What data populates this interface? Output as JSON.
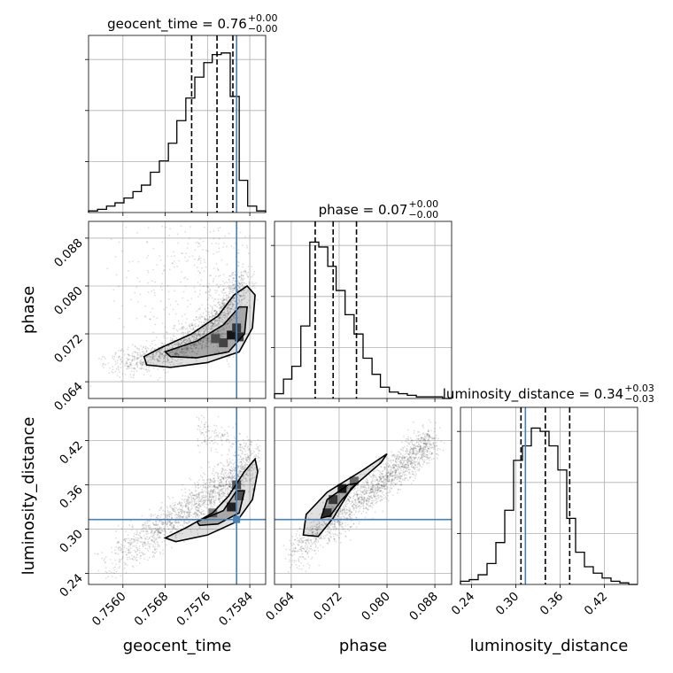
{
  "chart_data": {
    "type": "corner",
    "parameters": [
      "geocent_time",
      "phase",
      "luminosity_distance"
    ],
    "truth": {
      "geocent_time": 0.75815,
      "phase": null,
      "luminosity_distance": 0.313
    },
    "titles": [
      {
        "param": "geocent_time",
        "text": "geocent_time = 0.76",
        "plus": "+0.00",
        "minus": "−0.00"
      },
      {
        "param": "phase",
        "text": "phase = 0.07",
        "plus": "+0.00",
        "minus": "−0.00"
      },
      {
        "param": "luminosity_distance",
        "text": "luminosity_distance = 0.34",
        "plus": "+0.03",
        "minus": "−0.03"
      }
    ],
    "axes": {
      "geocent_time": {
        "range": [
          0.75535,
          0.7587
        ],
        "ticks": [
          "0.7560",
          "0.7568",
          "0.7576",
          "0.7584"
        ],
        "tick_values": [
          0.756,
          0.7568,
          0.7576,
          0.7584
        ]
      },
      "phase": {
        "range": [
          0.0612,
          0.0908
        ],
        "ticks": [
          "0.064",
          "0.072",
          "0.080",
          "0.088"
        ],
        "tick_values": [
          0.064,
          0.072,
          0.08,
          0.088
        ]
      },
      "luminosity_distance": {
        "range": [
          0.225,
          0.465
        ],
        "ticks": [
          "0.24",
          "0.30",
          "0.36",
          "0.42"
        ],
        "tick_values": [
          0.24,
          0.3,
          0.36,
          0.42
        ]
      }
    },
    "histograms": {
      "geocent_time": {
        "edges": [
          0.75535,
          0.75552,
          0.75569,
          0.75585,
          0.75602,
          0.75619,
          0.75635,
          0.75652,
          0.75669,
          0.75686,
          0.75702,
          0.75719,
          0.75736,
          0.75753,
          0.75769,
          0.75786,
          0.75803,
          0.7582,
          0.75836,
          0.75853,
          0.7587
        ],
        "counts": [
          0.01,
          0.02,
          0.04,
          0.06,
          0.09,
          0.13,
          0.17,
          0.25,
          0.32,
          0.43,
          0.57,
          0.71,
          0.84,
          0.93,
          0.98,
          0.99,
          0.72,
          0.2,
          0.04,
          0.01
        ],
        "quantiles": [
          0.7573,
          0.75778,
          0.75808
        ]
      },
      "phase": {
        "edges": [
          0.0612,
          0.0627,
          0.0641,
          0.0656,
          0.0671,
          0.0686,
          0.0701,
          0.0715,
          0.073,
          0.0745,
          0.076,
          0.0775,
          0.0789,
          0.0804,
          0.0819,
          0.0834,
          0.0849,
          0.0864,
          0.0878,
          0.0893,
          0.0908
        ],
        "counts": [
          0.03,
          0.12,
          0.2,
          0.45,
          0.97,
          0.94,
          0.82,
          0.67,
          0.52,
          0.4,
          0.25,
          0.15,
          0.07,
          0.04,
          0.03,
          0.02,
          0.01,
          0.01,
          0.01,
          0.0
        ],
        "quantiles": [
          0.068,
          0.071,
          0.0749
        ]
      },
      "luminosity_distance": {
        "edges": [
          0.225,
          0.237,
          0.249,
          0.261,
          0.273,
          0.285,
          0.297,
          0.309,
          0.321,
          0.333,
          0.345,
          0.357,
          0.369,
          0.381,
          0.393,
          0.405,
          0.417,
          0.429,
          0.441,
          0.453,
          0.465
        ],
        "counts": [
          0.02,
          0.03,
          0.06,
          0.13,
          0.26,
          0.46,
          0.77,
          0.86,
          0.97,
          0.95,
          0.86,
          0.71,
          0.41,
          0.2,
          0.11,
          0.07,
          0.04,
          0.02,
          0.01,
          0.0
        ],
        "quantiles": [
          0.307,
          0.34,
          0.373
        ]
      }
    },
    "pairs": [
      {
        "x": "geocent_time",
        "y": "phase"
      },
      {
        "x": "geocent_time",
        "y": "luminosity_distance"
      },
      {
        "x": "phase",
        "y": "luminosity_distance"
      }
    ]
  },
  "ui": {
    "title_geocent_time": "geocent_time = 0.76",
    "title_phase": "phase = 0.07",
    "title_luminosity_distance": "luminosity_distance = 0.34",
    "xlabel_col0": "geocent_time",
    "xlabel_col1": "phase",
    "xlabel_col2": "luminosity_distance",
    "ylabel_row1": "phase",
    "ylabel_row2": "luminosity_distance"
  },
  "colors": {
    "truth": "#4682b4",
    "hist": "#000000",
    "grid": "#b0b0b0",
    "scatter": "#000000"
  }
}
